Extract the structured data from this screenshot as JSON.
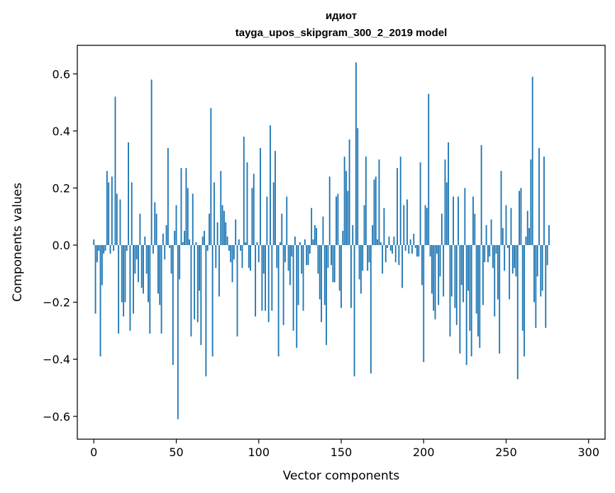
{
  "chart_data": {
    "type": "bar",
    "title": "идиот",
    "subtitle": "tayga_upos_skipgram_300_2_2019 model",
    "xlabel": "Vector components",
    "ylabel": "Components values",
    "xlim": [
      -10,
      310
    ],
    "ylim": [
      -0.68,
      0.7
    ],
    "xticks": [
      0,
      50,
      100,
      150,
      200,
      250,
      300
    ],
    "yticks": [
      -0.6,
      -0.4,
      -0.2,
      0.0,
      0.2,
      0.4,
      0.6
    ],
    "ytick_labels": [
      "−0.6",
      "−0.4",
      "−0.2",
      "0.0",
      "0.2",
      "0.4",
      "0.6"
    ],
    "xtick_labels": [
      "0",
      "50",
      "100",
      "150",
      "200",
      "250",
      "300"
    ],
    "color": "#1f77b4",
    "values": [
      0.02,
      -0.24,
      -0.06,
      -0.02,
      -0.39,
      -0.14,
      -0.03,
      -0.02,
      0.26,
      0.22,
      -0.03,
      0.24,
      -0.02,
      0.52,
      0.18,
      -0.31,
      0.16,
      -0.2,
      -0.25,
      -0.2,
      -0.02,
      0.36,
      -0.3,
      0.22,
      -0.24,
      -0.1,
      -0.05,
      -0.13,
      0.11,
      -0.15,
      -0.17,
      0.03,
      -0.1,
      -0.2,
      -0.31,
      0.58,
      -0.03,
      0.15,
      0.11,
      -0.17,
      -0.21,
      -0.31,
      0.04,
      -0.05,
      0.07,
      0.34,
      -0.01,
      -0.1,
      -0.42,
      0.05,
      0.14,
      -0.61,
      -0.12,
      0.27,
      0.01,
      0.05,
      0.27,
      0.2,
      0.02,
      -0.32,
      0.18,
      -0.26,
      0.01,
      -0.27,
      -0.16,
      -0.35,
      0.03,
      0.05,
      -0.46,
      -0.02,
      0.11,
      0.48,
      -0.39,
      0.22,
      -0.08,
      0.08,
      -0.18,
      0.26,
      0.14,
      0.12,
      0.08,
      0.03,
      -0.02,
      -0.06,
      -0.13,
      -0.05,
      0.09,
      -0.32,
      0.02,
      -0.02,
      -0.08,
      0.38,
      0.01,
      0.29,
      -0.08,
      -0.09,
      0.2,
      0.25,
      -0.25,
      0.01,
      -0.06,
      0.34,
      -0.23,
      -0.1,
      -0.23,
      0.17,
      -0.27,
      0.42,
      -0.23,
      0.22,
      0.33,
      -0.08,
      -0.39,
      0.01,
      0.11,
      -0.28,
      -0.06,
      0.17,
      -0.09,
      -0.14,
      -0.04,
      -0.3,
      0.03,
      -0.36,
      -0.21,
      0.01,
      -0.1,
      -0.23,
      0.02,
      -0.07,
      -0.07,
      -0.03,
      0.13,
      0.02,
      0.07,
      0.06,
      -0.1,
      -0.19,
      -0.27,
      0.1,
      -0.21,
      -0.35,
      -0.08,
      0.24,
      -0.07,
      -0.13,
      -0.13,
      0.17,
      0.18,
      -0.16,
      -0.22,
      0.05,
      0.31,
      0.26,
      0.19,
      0.37,
      -0.22,
      0.07,
      -0.46,
      0.64,
      0.41,
      -0.12,
      -0.17,
      -0.09,
      0.14,
      0.31,
      -0.09,
      -0.06,
      -0.45,
      0.07,
      0.23,
      0.24,
      0.02,
      0.3,
      0.01,
      -0.1,
      0.13,
      -0.06,
      -0.01,
      0.03,
      -0.02,
      -0.03,
      0.03,
      -0.06,
      0.27,
      -0.07,
      0.31,
      -0.15,
      0.14,
      -0.02,
      0.16,
      -0.03,
      0.02,
      -0.03,
      0.04,
      -0.01,
      -0.04,
      -0.04,
      0.29,
      -0.14,
      -0.41,
      0.14,
      0.13,
      0.53,
      -0.04,
      -0.17,
      -0.23,
      -0.26,
      -0.03,
      -0.21,
      -0.11,
      0.11,
      -0.18,
      0.3,
      0.22,
      0.36,
      -0.32,
      -0.18,
      0.17,
      -0.22,
      -0.28,
      0.17,
      -0.38,
      -0.14,
      -0.2,
      0.2,
      -0.42,
      -0.16,
      -0.3,
      -0.39,
      0.17,
      0.11,
      -0.24,
      -0.32,
      -0.36,
      0.35,
      -0.21,
      -0.06,
      0.07,
      -0.06,
      -0.04,
      0.09,
      -0.08,
      -0.25,
      -0.03,
      -0.19,
      -0.38,
      0.26,
      0.06,
      -0.09,
      0.14,
      -0.01,
      -0.19,
      0.13,
      -0.1,
      -0.08,
      -0.11,
      -0.47,
      0.19,
      0.2,
      -0.3,
      -0.39,
      0.03,
      0.12,
      0.06,
      0.3,
      0.59,
      -0.2,
      -0.29,
      -0.11,
      0.34,
      -0.18,
      -0.16,
      0.31,
      -0.29,
      -0.07,
      0.07
    ]
  }
}
